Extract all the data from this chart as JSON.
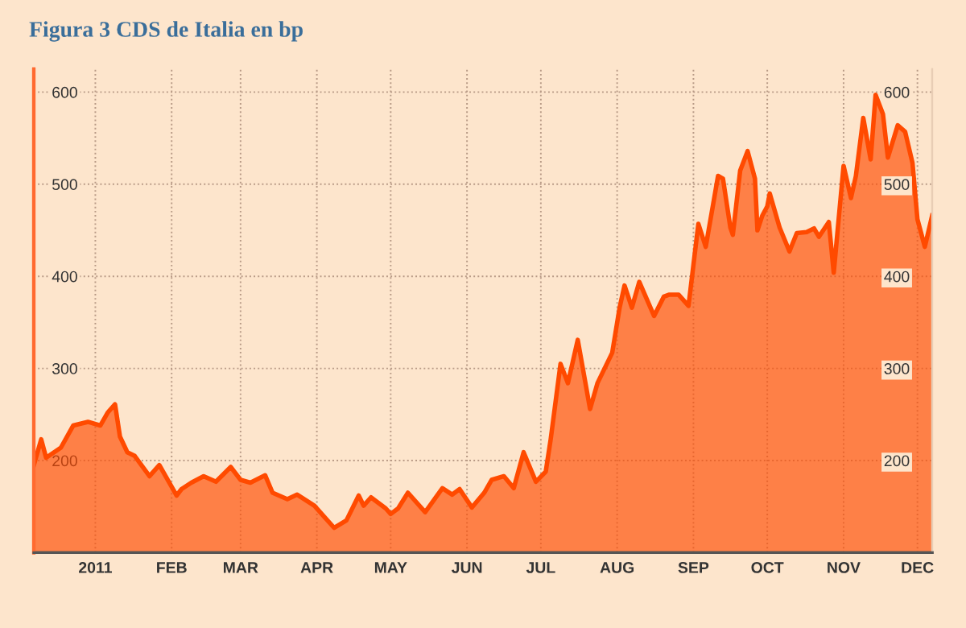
{
  "chart_data": {
    "type": "area",
    "title": "Figura 3 CDS de Italia en bp",
    "x": [
      "2010-12-07",
      "2010-12-10",
      "2010-12-12",
      "2010-12-18",
      "2010-12-23",
      "2010-12-29",
      "2011-01-03",
      "2011-01-06",
      "2011-01-09",
      "2011-01-11",
      "2011-01-14",
      "2011-01-17",
      "2011-01-23",
      "2011-01-27",
      "2011-02-03",
      "2011-02-05",
      "2011-02-09",
      "2011-02-14",
      "2011-02-19",
      "2011-02-25",
      "2011-03-01",
      "2011-03-05",
      "2011-03-11",
      "2011-03-14",
      "2011-03-20",
      "2011-03-24",
      "2011-03-31",
      "2011-04-04",
      "2011-04-08",
      "2011-04-13",
      "2011-04-18",
      "2011-04-20",
      "2011-04-23",
      "2011-04-29",
      "2011-05-01",
      "2011-05-04",
      "2011-05-08",
      "2011-05-15",
      "2011-05-22",
      "2011-05-26",
      "2011-05-29",
      "2011-06-03",
      "2011-06-08",
      "2011-06-11",
      "2011-06-16",
      "2011-06-20",
      "2011-06-24",
      "2011-06-29",
      "2011-07-03",
      "2011-07-05",
      "2011-07-09",
      "2011-07-12",
      "2011-07-16",
      "2011-07-21",
      "2011-07-24",
      "2011-07-30",
      "2011-08-02",
      "2011-08-04",
      "2011-08-07",
      "2011-08-10",
      "2011-08-16",
      "2011-08-20",
      "2011-08-22",
      "2011-08-26",
      "2011-08-30",
      "2011-09-03",
      "2011-09-06",
      "2011-09-11",
      "2011-09-13",
      "2011-09-16",
      "2011-09-17",
      "2011-09-20",
      "2011-09-23",
      "2011-09-26",
      "2011-09-27",
      "2011-09-29",
      "2011-10-01",
      "2011-10-02",
      "2011-10-06",
      "2011-10-10",
      "2011-10-13",
      "2011-10-17",
      "2011-10-20",
      "2011-10-22",
      "2011-10-26",
      "2011-10-28",
      "2011-11-01",
      "2011-11-04",
      "2011-11-06",
      "2011-11-09",
      "2011-11-12",
      "2011-11-14",
      "2011-11-17",
      "2011-11-19",
      "2011-11-23",
      "2011-11-26",
      "2011-11-29",
      "2011-12-01",
      "2011-12-04",
      "2011-12-07"
    ],
    "series": [
      {
        "color": "#ff4a00",
        "values": [
          195,
          223,
          203,
          214,
          238,
          242,
          238,
          252,
          261,
          226,
          209,
          205,
          183,
          195,
          162,
          169,
          176,
          183,
          177,
          193,
          179,
          176,
          184,
          165,
          158,
          163,
          151,
          139,
          127,
          135,
          162,
          151,
          160,
          148,
          142,
          148,
          165,
          144,
          170,
          163,
          169,
          149,
          165,
          179,
          183,
          170,
          209,
          177,
          188,
          223,
          305,
          284,
          331,
          256,
          284,
          317,
          366,
          390,
          366,
          394,
          357,
          378,
          380,
          380,
          368,
          457,
          432,
          509,
          506,
          453,
          445,
          515,
          536,
          506,
          450,
          466,
          476,
          490,
          453,
          427,
          447,
          448,
          452,
          443,
          459,
          404,
          520,
          485,
          509,
          572,
          527,
          597,
          576,
          529,
          564,
          557,
          523,
          462,
          432,
          466
        ]
      }
    ],
    "xlim": [
      "2010-12-07",
      "2011-12-07"
    ],
    "xticks": [
      {
        "value": "2011-01-01",
        "label": "2011"
      },
      {
        "value": "2011-02-01",
        "label": "FEB"
      },
      {
        "value": "2011-03-01",
        "label": "MAR"
      },
      {
        "value": "2011-04-01",
        "label": "APR"
      },
      {
        "value": "2011-05-01",
        "label": "MAY"
      },
      {
        "value": "2011-06-01",
        "label": "JUN"
      },
      {
        "value": "2011-07-01",
        "label": "JUL"
      },
      {
        "value": "2011-08-01",
        "label": "AUG"
      },
      {
        "value": "2011-09-01",
        "label": "SEP"
      },
      {
        "value": "2011-10-01",
        "label": "OCT"
      },
      {
        "value": "2011-11-01",
        "label": "NOV"
      },
      {
        "value": "2011-12-01",
        "label": "DEC"
      }
    ],
    "ylim": [
      100,
      625
    ],
    "yticks": [
      200,
      300,
      400,
      500,
      600
    ],
    "y2lim": [
      100,
      625
    ],
    "y2ticks": [
      200,
      300,
      400,
      500,
      600
    ],
    "grid": true
  }
}
